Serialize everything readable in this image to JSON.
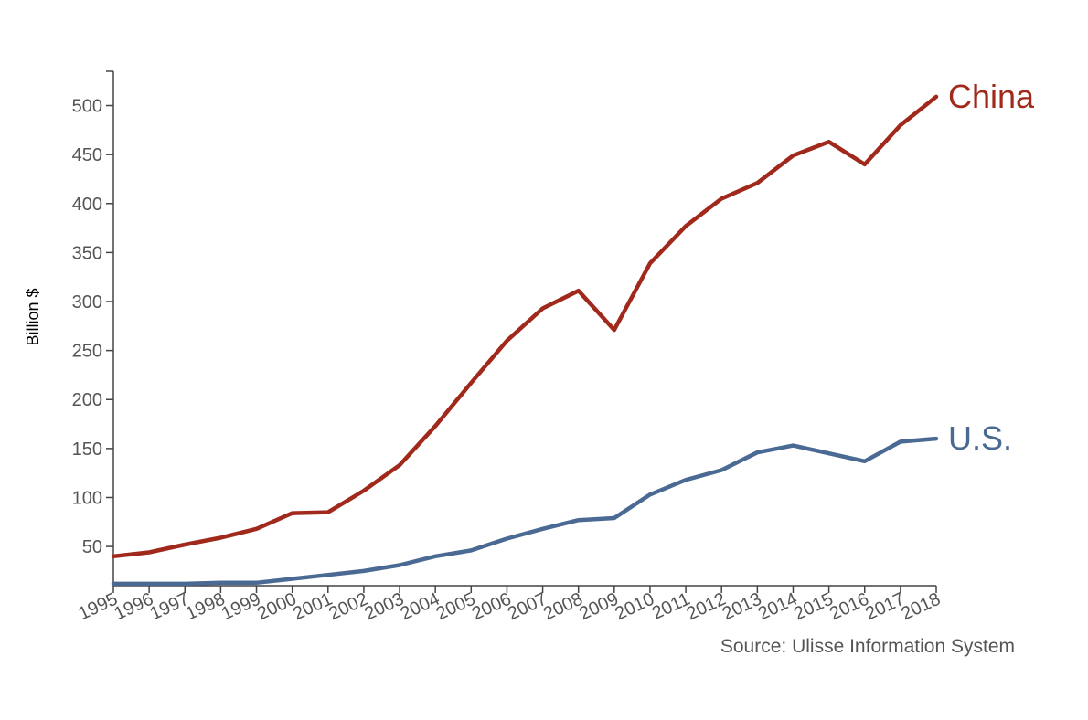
{
  "chart_data": {
    "type": "line",
    "x": [
      1995,
      1996,
      1997,
      1998,
      1999,
      2000,
      2001,
      2002,
      2003,
      2004,
      2005,
      2006,
      2007,
      2008,
      2009,
      2010,
      2011,
      2012,
      2013,
      2014,
      2015,
      2016,
      2017,
      2018
    ],
    "x_tick_labels": [
      "1995",
      "1996",
      "1997",
      "1998",
      "1999",
      "2000",
      "2001",
      "2002",
      "2003",
      "2004",
      "2005",
      "2006",
      "2007",
      "2008",
      "2009",
      "2010",
      "2011",
      "2012",
      "2013",
      "2014",
      "2015",
      "2016",
      "2017",
      "2018"
    ],
    "series": [
      {
        "name": "China",
        "color": "#a0291c",
        "values": [
          40,
          44,
          52,
          59,
          68,
          84,
          85,
          107,
          133,
          173,
          217,
          260,
          293,
          311,
          271,
          339,
          377,
          405,
          421,
          449,
          463,
          440,
          480,
          509
        ]
      },
      {
        "name": "U.S.",
        "color": "#4a6a94",
        "values": [
          12,
          12,
          12,
          13,
          13,
          17,
          21,
          25,
          31,
          40,
          46,
          58,
          68,
          77,
          79,
          103,
          118,
          128,
          146,
          153,
          145,
          137,
          157,
          160
        ]
      }
    ],
    "ylabel": "Billion $",
    "y_ticks": [
      50,
      100,
      150,
      200,
      250,
      300,
      350,
      400,
      450,
      500
    ],
    "y_tick_labels": [
      "50",
      "100",
      "150",
      "200",
      "250",
      "300",
      "350",
      "400",
      "450",
      "500"
    ],
    "ylim": [
      10,
      535
    ],
    "xlim": [
      1995,
      2018
    ],
    "grid": false,
    "source": "Source: Ulisse Information System"
  }
}
